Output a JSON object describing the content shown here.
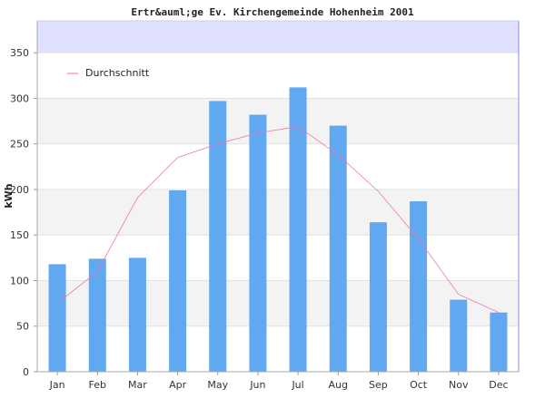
{
  "chart_data": {
    "type": "bar",
    "title": "Ertr&auml;ge Ev. Kirchengemeinde Hohenheim 2001",
    "ylabel": "kWh",
    "xlabel": "",
    "categories": [
      "Jan",
      "Feb",
      "Mar",
      "Apr",
      "May",
      "Jun",
      "Jul",
      "Aug",
      "Sep",
      "Oct",
      "Nov",
      "Dec"
    ],
    "ylim": [
      0,
      385
    ],
    "yticks": [
      0,
      50,
      100,
      150,
      200,
      250,
      300,
      350
    ],
    "series": [
      {
        "kind": "bar",
        "color": "#60a8f0",
        "values": [
          118,
          124,
          125,
          199,
          297,
          282,
          312,
          270,
          164,
          187,
          79,
          65
        ]
      },
      {
        "kind": "line",
        "name": "Durchschnitt",
        "color": "#f075b0",
        "values": [
          75,
          110,
          191,
          235,
          250,
          262,
          269,
          238,
          198,
          146,
          85,
          65
        ]
      }
    ],
    "grid": true,
    "legend": "top-left",
    "colors": {
      "band_dark": "#f3f3f3",
      "band_light": "#ffffff",
      "over_range": "#e0e0ff",
      "axis_right": "#8888ee"
    }
  }
}
